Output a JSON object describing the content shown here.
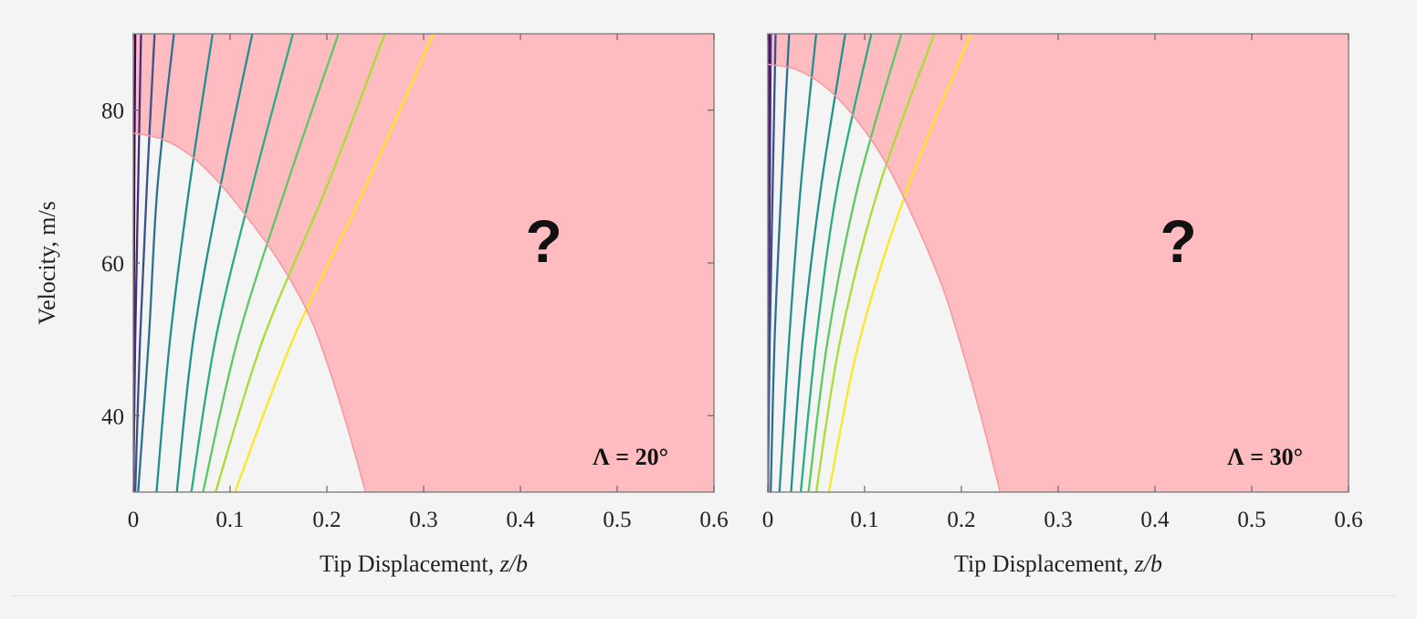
{
  "colors": {
    "unstable_region": "#ffbcc0",
    "stable_region": "#f4f4f4",
    "boundary": "#f39aa0",
    "frame": "#808080",
    "curves": [
      "#440154",
      "#472e7c",
      "#3b518b",
      "#2c718e",
      "#21908d",
      "#27ad81",
      "#5cc863",
      "#aadc32",
      "#fde725"
    ]
  },
  "chart_data": [
    {
      "type": "line",
      "xlabel": "Tip Displacement, z/b",
      "ylabel": "Velocity, m/s",
      "xlim": [
        0,
        0.6
      ],
      "ylim": [
        30,
        90
      ],
      "x_ticks": [
        "0",
        "0.1",
        "0.2",
        "0.3",
        "0.4",
        "0.5",
        "0.6"
      ],
      "y_ticks": [
        "40",
        "60",
        "80"
      ],
      "annotation": "Λ = 20°",
      "region_label": "?",
      "flutter_boundary": {
        "x": [
          0,
          0.03,
          0.06,
          0.09,
          0.12,
          0.15,
          0.18,
          0.2,
          0.22,
          0.24
        ],
        "y": [
          77,
          76.2,
          74,
          70.3,
          65.6,
          60.3,
          53.6,
          47,
          39,
          30
        ]
      },
      "series": [
        {
          "x": [
            0.0,
            0.0005,
            0.001,
            0.002
          ],
          "y": [
            30,
            50,
            70,
            90
          ]
        },
        {
          "x": [
            0.0,
            0.002,
            0.005,
            0.008
          ],
          "y": [
            30,
            50,
            70,
            90
          ]
        },
        {
          "x": [
            0.002,
            0.007,
            0.014,
            0.022
          ],
          "y": [
            30,
            50,
            70,
            90
          ]
        },
        {
          "x": [
            0.005,
            0.016,
            0.025,
            0.042
          ],
          "y": [
            30,
            50,
            70,
            90
          ]
        },
        {
          "x": [
            0.024,
            0.038,
            0.058,
            0.082
          ],
          "y": [
            30,
            50,
            70,
            90
          ]
        },
        {
          "x": [
            0.045,
            0.062,
            0.09,
            0.123
          ],
          "y": [
            30,
            50,
            70,
            90
          ]
        },
        {
          "x": [
            0.06,
            0.085,
            0.123,
            0.165
          ],
          "y": [
            30,
            50,
            70,
            90
          ]
        },
        {
          "x": [
            0.072,
            0.108,
            0.158,
            0.212
          ],
          "y": [
            30,
            50,
            70,
            90
          ]
        },
        {
          "x": [
            0.085,
            0.134,
            0.2,
            0.26
          ],
          "y": [
            30,
            50,
            70,
            90
          ]
        },
        {
          "x": [
            0.105,
            0.165,
            0.24,
            0.31
          ],
          "y": [
            30,
            50,
            70,
            90
          ]
        }
      ]
    },
    {
      "type": "line",
      "xlabel": "Tip Displacement, z/b",
      "ylabel": "",
      "xlim": [
        0,
        0.6
      ],
      "ylim": [
        30,
        90
      ],
      "x_ticks": [
        "0",
        "0.1",
        "0.2",
        "0.3",
        "0.4",
        "0.5",
        "0.6"
      ],
      "y_ticks": [],
      "annotation": "Λ = 30°",
      "region_label": "?",
      "flutter_boundary": {
        "x": [
          0,
          0.03,
          0.06,
          0.09,
          0.12,
          0.15,
          0.18,
          0.2,
          0.22,
          0.24
        ],
        "y": [
          86,
          85.3,
          83,
          79,
          73.5,
          66,
          57,
          49,
          40,
          30
        ]
      },
      "series": [
        {
          "x": [
            0.0,
            0.0005,
            0.001,
            0.0015
          ],
          "y": [
            30,
            50,
            70,
            90
          ]
        },
        {
          "x": [
            0.0,
            0.001,
            0.002,
            0.003
          ],
          "y": [
            30,
            50,
            70,
            90
          ]
        },
        {
          "x": [
            0.0,
            0.002,
            0.005,
            0.008
          ],
          "y": [
            30,
            50,
            70,
            90
          ]
        },
        {
          "x": [
            0.003,
            0.007,
            0.014,
            0.022
          ],
          "y": [
            30,
            50,
            70,
            90
          ]
        },
        {
          "x": [
            0.012,
            0.022,
            0.034,
            0.05
          ],
          "y": [
            30,
            50,
            70,
            90
          ]
        },
        {
          "x": [
            0.024,
            0.036,
            0.055,
            0.08
          ],
          "y": [
            30,
            50,
            70,
            90
          ]
        },
        {
          "x": [
            0.034,
            0.05,
            0.072,
            0.107
          ],
          "y": [
            30,
            50,
            70,
            90
          ]
        },
        {
          "x": [
            0.042,
            0.062,
            0.093,
            0.138
          ],
          "y": [
            30,
            50,
            70,
            90
          ]
        },
        {
          "x": [
            0.05,
            0.075,
            0.115,
            0.172
          ],
          "y": [
            30,
            50,
            70,
            90
          ]
        },
        {
          "x": [
            0.063,
            0.095,
            0.145,
            0.21
          ],
          "y": [
            30,
            50,
            70,
            90
          ]
        }
      ]
    }
  ]
}
